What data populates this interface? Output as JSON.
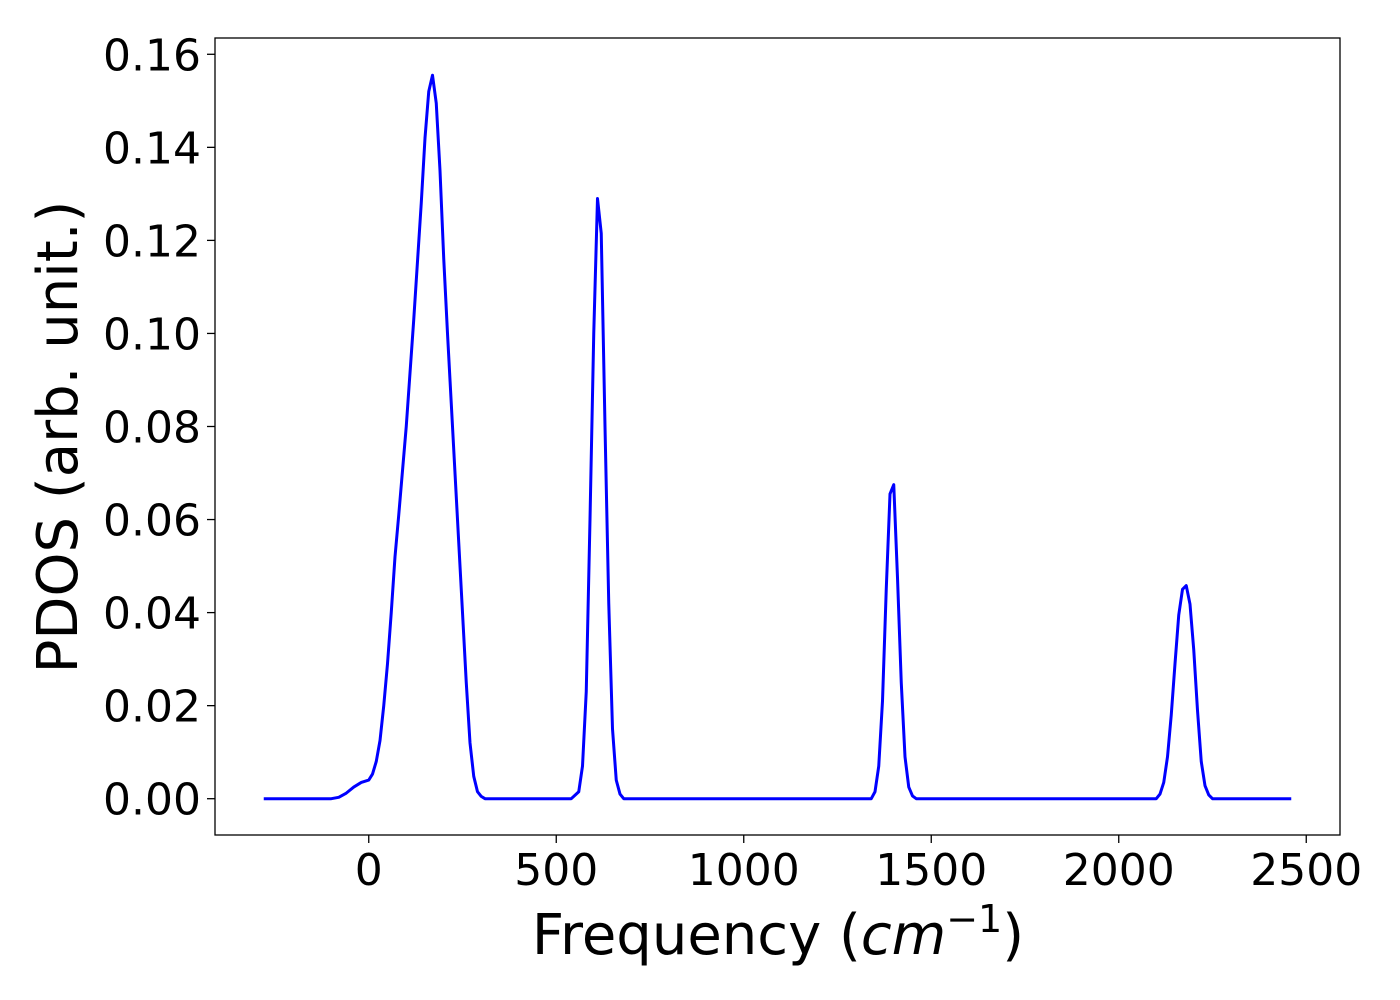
{
  "chart_data": {
    "type": "line",
    "title": "",
    "xlabel": "Frequency (",
    "xlabel_math": "cm",
    "xlabel_sup": "−1",
    "xlabel_close": ")",
    "ylabel": "PDOS (arb. unit.)",
    "xlim": [
      -410,
      2590
    ],
    "ylim": [
      -0.0078,
      0.1635
    ],
    "xticks": [
      0,
      500,
      1000,
      1500,
      2000,
      2500
    ],
    "xtick_labels": [
      "0",
      "500",
      "1000",
      "1500",
      "2000",
      "2500"
    ],
    "yticks": [
      0.0,
      0.02,
      0.04,
      0.06,
      0.08,
      0.1,
      0.12,
      0.14,
      0.16
    ],
    "ytick_labels": [
      "0.00",
      "0.02",
      "0.04",
      "0.06",
      "0.08",
      "0.10",
      "0.12",
      "0.14",
      "0.16"
    ],
    "grid": false,
    "legend": false,
    "color": "#0000ff",
    "series": [
      {
        "x": [
          -280,
          -100,
          -80,
          -60,
          -40,
          -20,
          0,
          10,
          20,
          30,
          40,
          50,
          60,
          70,
          80,
          100,
          120,
          140,
          150,
          160,
          170,
          180,
          190,
          200,
          210,
          220,
          230,
          240,
          250,
          260,
          270,
          280,
          290,
          300,
          310,
          320,
          330,
          340,
          350,
          360,
          380,
          540,
          560,
          570,
          580,
          590,
          600,
          610,
          620,
          630,
          640,
          650,
          660,
          670,
          680,
          690,
          700,
          720,
          1320,
          1340,
          1350,
          1360,
          1370,
          1380,
          1390,
          1400,
          1410,
          1420,
          1430,
          1440,
          1450,
          1460,
          1480,
          2080,
          2100,
          2110,
          2120,
          2130,
          2140,
          2150,
          2160,
          2170,
          2180,
          2190,
          2200,
          2210,
          2220,
          2230,
          2240,
          2250,
          2260,
          2270,
          2290,
          2460
        ],
        "y": [
          0.0,
          0.0,
          0.0003,
          0.0012,
          0.0025,
          0.0035,
          0.004,
          0.0053,
          0.008,
          0.0125,
          0.02,
          0.029,
          0.04,
          0.052,
          0.061,
          0.08,
          0.103,
          0.128,
          0.142,
          0.152,
          0.1555,
          0.1495,
          0.135,
          0.116,
          0.1,
          0.085,
          0.07,
          0.055,
          0.04,
          0.025,
          0.012,
          0.0048,
          0.0015,
          0.0005,
          0.0,
          0.0,
          0.0,
          0.0,
          0.0,
          0.0,
          0.0,
          0.0,
          0.0015,
          0.007,
          0.023,
          0.06,
          0.1,
          0.129,
          0.1215,
          0.08,
          0.042,
          0.015,
          0.004,
          0.001,
          0.0,
          0.0,
          0.0,
          0.0,
          0.0,
          0.0,
          0.0015,
          0.007,
          0.021,
          0.045,
          0.0655,
          0.0675,
          0.0475,
          0.025,
          0.009,
          0.0025,
          0.0006,
          0.0,
          0.0,
          0.0,
          0.0,
          0.001,
          0.0035,
          0.009,
          0.018,
          0.029,
          0.0395,
          0.045,
          0.0458,
          0.0418,
          0.032,
          0.019,
          0.008,
          0.0028,
          0.0008,
          0.0,
          0.0,
          0.0,
          0.0,
          0.0
        ]
      }
    ]
  }
}
